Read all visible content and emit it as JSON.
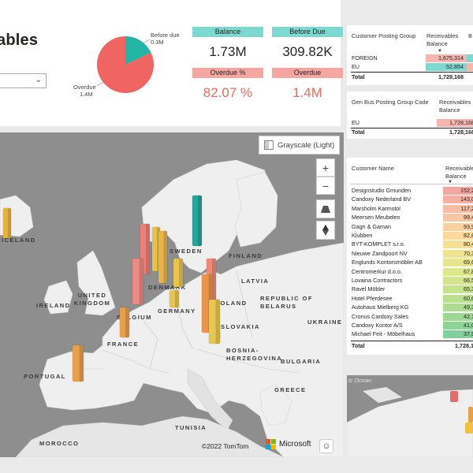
{
  "header": {
    "title": "ables",
    "slicer_value": ""
  },
  "pie": {
    "label_before_due": "Before due",
    "value_before_due": "0.3M",
    "label_overdue": "Overdue",
    "value_overdue": "1.4M",
    "before_due_share": 0.18,
    "colors": {
      "overdue": "#f06461",
      "before_due": "#21b5a6"
    }
  },
  "kpis": {
    "balance_label": "Balance",
    "balance_value": "1.73M",
    "before_due_label": "Before Due",
    "before_due_value": "309.82K",
    "overdue_pct_label": "Overdue %",
    "overdue_pct_value": "82.07 %",
    "overdue_label": "Overdue",
    "overdue_value": "1.4M"
  },
  "customer_posting": {
    "col1": "Customer Posting Group",
    "col2a": "Receivables",
    "col2b": "Balance",
    "col3": "B",
    "rows": [
      {
        "name": "FOREIGN",
        "value": "1,675,314"
      },
      {
        "name": "EU",
        "value": "52,854"
      }
    ],
    "total_label": "Total",
    "total_value": "1,728,168"
  },
  "gen_bus": {
    "col1": "Gen Bus Posting Group Code",
    "col2a": "Receivables",
    "col2b": "Balance",
    "rows": [
      {
        "name": "EU",
        "value": "1,728,168"
      }
    ],
    "total_label": "Total",
    "total_value": "1,728,168"
  },
  "customers": {
    "col1": "Customer Name",
    "col2a": "Receivables",
    "col2b": "Balance",
    "rows": [
      {
        "name": "Designstudio Gmunden",
        "value": "152,2"
      },
      {
        "name": "Candoxy Nederland BV",
        "value": "143,0"
      },
      {
        "name": "Marsholm Karmstol",
        "value": "117,2"
      },
      {
        "name": "Meersen Meubelen",
        "value": "99,4"
      },
      {
        "name": "Gagn & Gaman",
        "value": "93,9"
      },
      {
        "name": "Klubben",
        "value": "82,8"
      },
      {
        "name": "BYT-KOMPLET s.r.o.",
        "value": "80,4"
      },
      {
        "name": "Nieuwe Zandpoort NV",
        "value": "70,3"
      },
      {
        "name": "Englunds Kontorsmöbler AB",
        "value": "69,6"
      },
      {
        "name": "Centromerkur d.o.o.",
        "value": "67,8"
      },
      {
        "name": "Lovaina Contractors",
        "value": "66,5"
      },
      {
        "name": "Ravel Möbler",
        "value": "65,3"
      },
      {
        "name": "Hotel Pferdesee",
        "value": "60,6"
      },
      {
        "name": "Autohaus Mielberg KG",
        "value": "49,3"
      },
      {
        "name": "Cronus Cardoxy Sales",
        "value": "42,1"
      },
      {
        "name": "Candoxy Kontor A/S",
        "value": "41,0"
      },
      {
        "name": "Michael Feit - Möbelhaus",
        "value": "37,9"
      }
    ],
    "total_label": "Total",
    "total_value": "1,728,1"
  },
  "map": {
    "style_button": "Grayscale (Light)",
    "zoom_in": "+",
    "zoom_out": "−",
    "credit_tomtom": "©2022 TomTom",
    "credit_ms": "Microsoft",
    "countries": [
      {
        "name": "ICELAND"
      },
      {
        "name": "SWEDEN"
      },
      {
        "name": "FINLAND"
      },
      {
        "name": "LATVIA"
      },
      {
        "name": "DENMARK"
      },
      {
        "name": "IRELAND"
      },
      {
        "name": "UNITED KINGDOM"
      },
      {
        "name": "REPUBLIC OF BELARUS"
      },
      {
        "name": "BELGIUM"
      },
      {
        "name": "GERMANY"
      },
      {
        "name": "POLAND"
      },
      {
        "name": "UKRAINE"
      },
      {
        "name": "SLOVAKIA"
      },
      {
        "name": "FRANCE"
      },
      {
        "name": "BOSNIA-HERZEGOVINA"
      },
      {
        "name": "BULGARIA"
      },
      {
        "name": "PORTUGAL"
      },
      {
        "name": "GREECE"
      },
      {
        "name": "TUNISIA"
      },
      {
        "name": "MOROCCO"
      }
    ]
  },
  "mini_map": {
    "sea_label": "ic Ocean"
  }
}
